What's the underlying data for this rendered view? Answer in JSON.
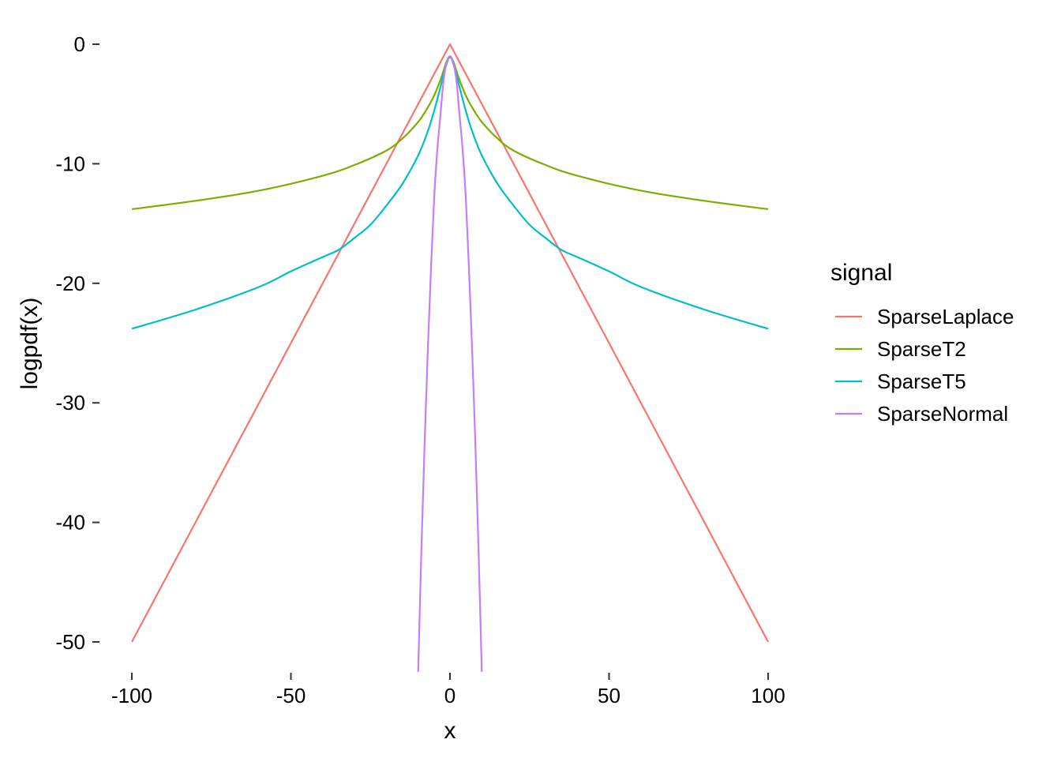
{
  "chart_data": {
    "type": "line",
    "title": "",
    "xlabel": "x",
    "ylabel": "logpdf(x)",
    "xlim": [
      -100,
      100
    ],
    "ylim": [
      -50,
      0
    ],
    "x_ticks": [
      -100,
      -50,
      0,
      50,
      100
    ],
    "x_tick_labels": [
      "-100",
      "-50",
      "0",
      "50",
      "100"
    ],
    "y_ticks": [
      0,
      -10,
      -20,
      -30,
      -40,
      -50
    ],
    "y_tick_labels": [
      "0",
      "-10",
      "-20",
      "-30",
      "-40",
      "-50"
    ],
    "grid": false,
    "legend": {
      "title": "signal",
      "placement": "right"
    },
    "series": [
      {
        "name": "SparseLaplace",
        "color": "#F8766D",
        "x": [
          -100,
          -50,
          0,
          50,
          100
        ],
        "y": [
          -50,
          -25,
          0,
          -25,
          -50
        ]
      },
      {
        "name": "SparseT2",
        "color": "#7CAE00",
        "x": [
          -100,
          -80,
          -60,
          -40,
          -30,
          -20,
          -15,
          -10,
          -7,
          -5,
          -3,
          -2,
          -1,
          0,
          1,
          2,
          3,
          5,
          7,
          10,
          15,
          20,
          30,
          40,
          60,
          80,
          100
        ],
        "y": [
          -13.8,
          -13.1,
          -12.25,
          -11.0,
          -10.1,
          -8.9,
          -7.9,
          -6.5,
          -5.3,
          -4.3,
          -3.0,
          -2.2,
          -1.4,
          -1.1,
          -1.4,
          -2.2,
          -3.0,
          -4.3,
          -5.3,
          -6.5,
          -7.9,
          -8.9,
          -10.1,
          -11.0,
          -12.25,
          -13.1,
          -13.8
        ]
      },
      {
        "name": "SparseT5",
        "color": "#00BFC4",
        "x": [
          -100,
          -80,
          -60,
          -50,
          -40,
          -35,
          -30,
          -25,
          -20,
          -15,
          -10,
          -7,
          -5,
          -3,
          -2,
          -1,
          0,
          1,
          2,
          3,
          5,
          7,
          10,
          15,
          20,
          25,
          30,
          35,
          40,
          50,
          60,
          80,
          100
        ],
        "y": [
          -23.8,
          -22.2,
          -20.3,
          -19.0,
          -17.8,
          -17.2,
          -16.2,
          -15.1,
          -13.5,
          -11.7,
          -9.3,
          -7.3,
          -5.6,
          -3.6,
          -2.5,
          -1.6,
          -1.0,
          -1.6,
          -2.5,
          -3.6,
          -5.6,
          -7.3,
          -9.3,
          -11.7,
          -13.5,
          -15.1,
          -16.2,
          -17.2,
          -17.8,
          -19.0,
          -20.3,
          -22.2,
          -23.8
        ]
      },
      {
        "name": "SparseNormal",
        "color": "#C77CFF",
        "x": [
          -10,
          -9,
          -8,
          -7,
          -6,
          -5,
          -4,
          -3,
          -2,
          -1,
          0,
          1,
          2,
          3,
          4,
          5,
          6,
          7,
          8,
          9,
          10
        ],
        "y": [
          -52.5,
          -42.5,
          -33.6,
          -25.8,
          -19.0,
          -13.0,
          -8.9,
          -5.9,
          -3.0,
          -1.5,
          -1.0,
          -1.5,
          -3.0,
          -5.9,
          -8.9,
          -13.0,
          -19.0,
          -25.8,
          -33.6,
          -42.5,
          -52.5
        ]
      }
    ]
  }
}
